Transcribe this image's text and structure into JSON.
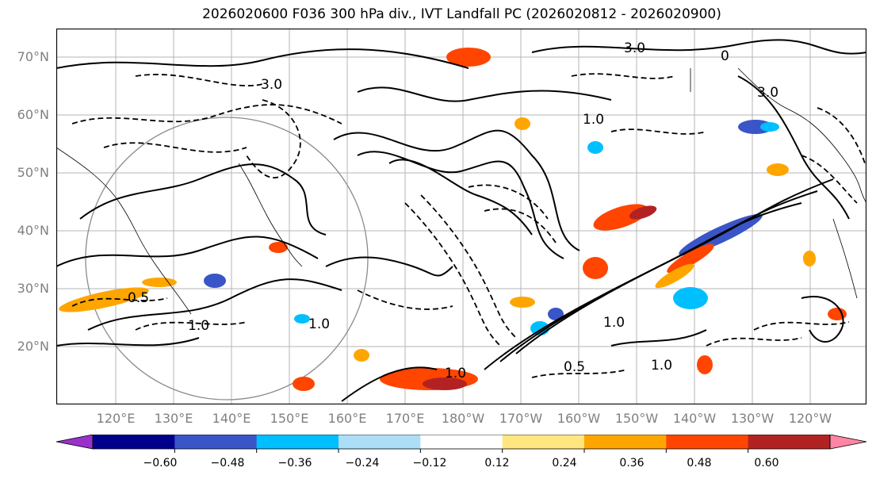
{
  "title": "2026020600 F036 300 hPa div., IVT Landfall PC (2026020812 - 2026020900)",
  "map": {
    "lat_labels": [
      "70°N",
      "60°N",
      "50°N",
      "40°N",
      "30°N",
      "20°N"
    ],
    "lon_labels": [
      "120°E",
      "130°E",
      "140°E",
      "150°E",
      "160°E",
      "170°E",
      "180°W",
      "170°W",
      "160°W",
      "150°W",
      "140°W",
      "130°W",
      "120°W"
    ],
    "contour_labels": [
      {
        "text": "3.0"
      },
      {
        "text": "1.0"
      },
      {
        "text": "0.5"
      },
      {
        "text": "1.0"
      },
      {
        "text": "1.0"
      },
      {
        "text": "3.0"
      },
      {
        "text": "0"
      },
      {
        "text": "3.0"
      },
      {
        "text": "0.5"
      },
      {
        "text": "1.0"
      },
      {
        "text": "1.0"
      },
      {
        "text": "1.0"
      }
    ]
  },
  "colorbar": {
    "colors": [
      "#9932CC",
      "#00008B",
      "#3A55C8",
      "#00BFFF",
      "#ADDEF8",
      "#FFFFFF",
      "#FFE680",
      "#FFA500",
      "#FF4500",
      "#B22222",
      "#FF85A5"
    ],
    "ticks": [
      "−0.60",
      "−0.48",
      "−0.36",
      "−0.24",
      "−0.12",
      "0.12",
      "0.24",
      "0.36",
      "0.48",
      "0.60"
    ]
  }
}
